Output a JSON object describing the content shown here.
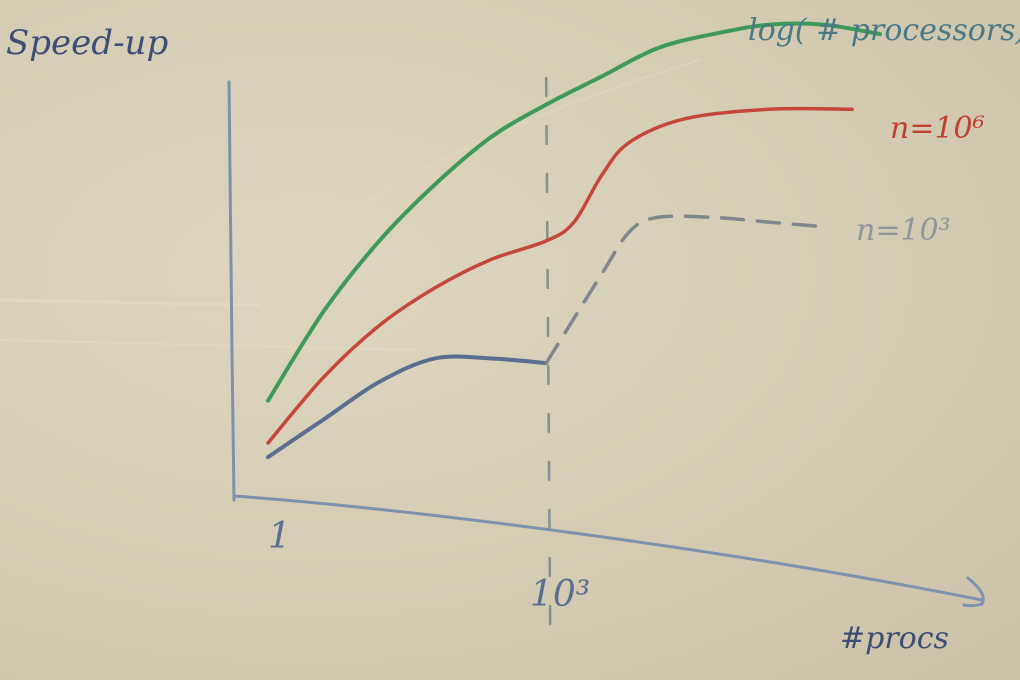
{
  "chart_data": {
    "type": "line",
    "ylabel": "Speed-up",
    "xlabel": "#procs",
    "x_ticks": [
      "1",
      "10³"
    ],
    "colors": {
      "green": "#3f9a5a",
      "red": "#c5473a",
      "blue": "#5a6f90",
      "gray": "#7f878c",
      "axis": "#7b8eaa"
    },
    "series": [
      {
        "name": "log( # processors)",
        "color_key": "green",
        "style": "solid",
        "points": [
          [
            1,
            0.19
          ],
          [
            2,
            0.38
          ],
          [
            3,
            0.53
          ],
          [
            4,
            0.65
          ],
          [
            5,
            0.75
          ],
          [
            6,
            0.82
          ],
          [
            7,
            0.88
          ],
          [
            8,
            0.94
          ],
          [
            9,
            0.97
          ],
          [
            10,
            0.99
          ],
          [
            11,
            0.99
          ],
          [
            12,
            0.97
          ]
        ]
      },
      {
        "name": "n=10⁶",
        "color_key": "red",
        "style": "solid",
        "points": [
          [
            1,
            0.1
          ],
          [
            2,
            0.24
          ],
          [
            3,
            0.35
          ],
          [
            4,
            0.43
          ],
          [
            5,
            0.49
          ],
          [
            6,
            0.53
          ],
          [
            6.5,
            0.57
          ],
          [
            7,
            0.67
          ],
          [
            7.5,
            0.74
          ],
          [
            8.5,
            0.79
          ],
          [
            10,
            0.81
          ],
          [
            11.5,
            0.81
          ]
        ]
      },
      {
        "name": "n=10³",
        "color_key": "blue",
        "style": "solid",
        "points": [
          [
            1,
            0.07
          ],
          [
            2,
            0.15
          ],
          [
            3,
            0.23
          ],
          [
            4,
            0.28
          ],
          [
            5,
            0.28
          ],
          [
            6,
            0.27
          ]
        ]
      },
      {
        "name": "n=10³",
        "color_key": "gray",
        "style": "dashed",
        "points": [
          [
            6,
            0.27
          ],
          [
            7,
            0.46
          ],
          [
            7.5,
            0.55
          ],
          [
            8,
            0.58
          ],
          [
            9,
            0.58
          ],
          [
            10,
            0.57
          ],
          [
            11,
            0.56
          ]
        ]
      }
    ],
    "vline": {
      "x": 6,
      "label": "10³"
    }
  }
}
